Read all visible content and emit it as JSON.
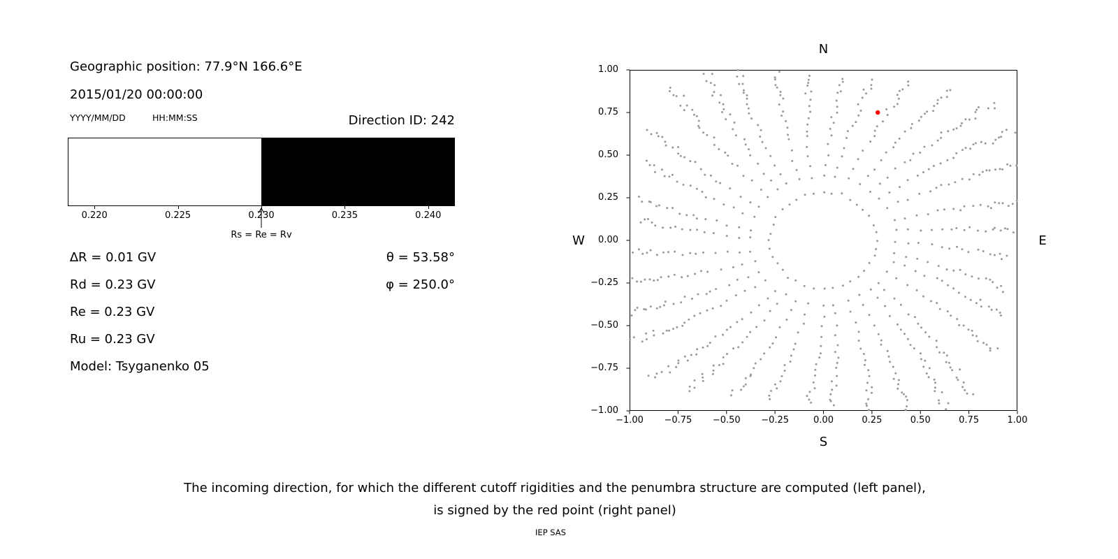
{
  "left_panel": {
    "geo_position": "Geographic position: 77.9°N 166.6°E",
    "datetime": "2015/01/20 00:00:00",
    "date_format": "YYYY/MM/DD",
    "time_format": "HH:MM:SS",
    "direction_id": "Direction ID: 242",
    "delta_r": "∆R = 0.01 GV",
    "rd": "Rd = 0.23 GV",
    "re": "Re = 0.23 GV",
    "ru": "Ru = 0.23 GV",
    "model": "Model: Tsyganenko 05",
    "theta": "θ = 53.58°",
    "phi": "φ = 250.0°"
  },
  "caption": {
    "line1": "The incoming direction, for which the different cutoff rigidities and the penumbra structure are computed (left panel),",
    "line2": "is signed by the red point (right panel)",
    "credit": "IEP SAS"
  },
  "chart_data": [
    {
      "type": "bar",
      "name": "penumbra-structure",
      "title": "",
      "xlabel": "",
      "xlim": [
        0.2184,
        0.2416
      ],
      "x_ticks": [
        0.22,
        0.225,
        0.23,
        0.235,
        0.24
      ],
      "x_tick_labels": [
        "0.220",
        "0.225",
        "0.230",
        "0.235",
        "0.240"
      ],
      "segments": [
        {
          "from": 0.2184,
          "to": 0.23,
          "color": "#ffffff",
          "meaning": "allowed"
        },
        {
          "from": 0.23,
          "to": 0.2416,
          "color": "#000000",
          "meaning": "forbidden"
        }
      ],
      "annotation": {
        "label": "Rs = Re = Rv",
        "x": 0.23
      },
      "values": {
        "Rs": 0.23,
        "Re": 0.23,
        "Rv": 0.23,
        "Rd": 0.23,
        "Ru": 0.23,
        "dR": 0.01,
        "unit": "GV"
      }
    },
    {
      "type": "scatter",
      "name": "incoming-directions-sky-map",
      "title": "",
      "xlim": [
        -1,
        1
      ],
      "ylim": [
        -1,
        1
      ],
      "x_ticks": [
        -1,
        -0.75,
        -0.5,
        -0.25,
        0,
        0.25,
        0.5,
        0.75,
        1
      ],
      "x_tick_labels": [
        "−1.00",
        "−0.75",
        "−0.50",
        "−0.25",
        "0.00",
        "0.25",
        "0.50",
        "0.75",
        "1.00"
      ],
      "y_ticks": [
        1,
        0.75,
        0.5,
        0.25,
        0,
        -0.25,
        -0.5,
        -0.75,
        -1
      ],
      "y_tick_labels": [
        "1.00",
        "0.75",
        "0.50",
        "0.25",
        "0.00",
        "−0.25",
        "−0.50",
        "−0.75",
        "−1.00"
      ],
      "compass": {
        "top": "N",
        "bottom": "S",
        "left": "W",
        "right": "E"
      },
      "dot_color": "#9a9a9a",
      "dot_radius": 1.5,
      "highlight": {
        "x": 0.28,
        "y": 0.75,
        "color": "#ff0000",
        "radius": 3.2,
        "meaning": "selected incoming direction (ID 242)"
      },
      "spokes": {
        "count": 36,
        "azimuth_step_deg": 10,
        "r_min": 0.28,
        "r_max_cap": 1.2,
        "edge_margin": 0.03,
        "curvature_deg_per_r": 9,
        "radius_steps": [
          [
            0.35,
            0.1
          ],
          [
            0.6,
            0.06
          ],
          [
            0.85,
            0.035
          ],
          [
            9,
            0.022
          ]
        ],
        "jitter": {
          "azimuth_deg": 1.3,
          "radius": 0.008
        },
        "seed": 42
      }
    }
  ]
}
